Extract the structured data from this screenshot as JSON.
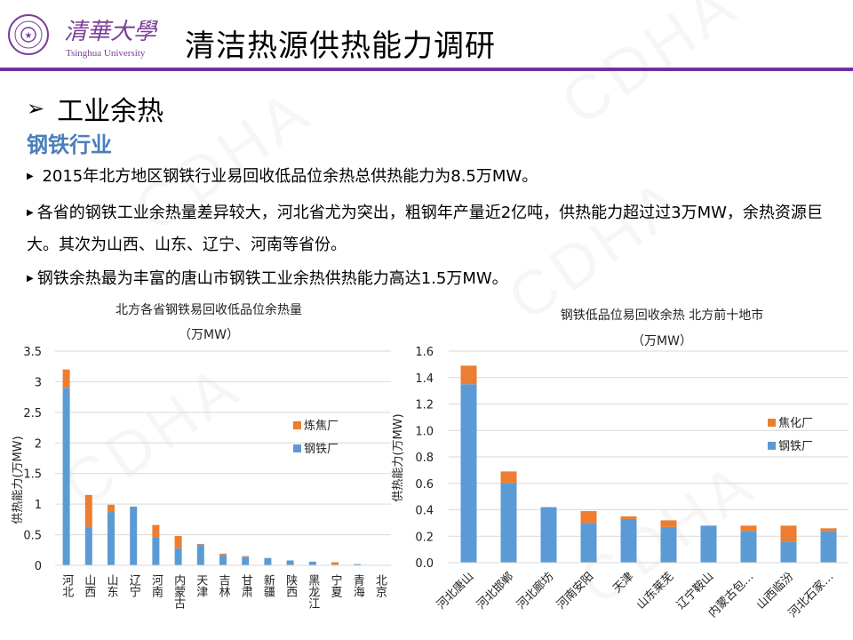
{
  "header": {
    "logo_cn": "清華大學",
    "logo_en": "Tsinghua University",
    "title": "清洁热源供热能力调研",
    "accent_color": "#7030a0"
  },
  "watermark": "CDHA",
  "section": {
    "heading": "工业余热",
    "heading_icon": "arrow-right-icon",
    "subheading": "钢铁行业",
    "subheading_color": "#4a7ebb"
  },
  "bullets": [
    "2015年北方地区钢铁行业易回收低品位余热总供热能力为8.5万MW。",
    "各省的钢铁工业余热量差异较大，河北省尤为突出，粗钢年产量近2亿吨，供热能力超过过3万MW，余热资源巨大。其次为山西、山东、辽宁、河南等省份。",
    "钢铁余热最为丰富的唐山市钢铁工业余热供热能力高达1.5万MW。"
  ],
  "chart_data": [
    {
      "type": "bar",
      "stacked": true,
      "title": "北方各省钢铁易回收低品位余热量",
      "subtitle": "（万MW）",
      "ylabel": "供热能力(万MW)",
      "xlabel": "",
      "ylim": [
        0,
        3.5
      ],
      "yticks": [
        "0",
        "0.5",
        "1",
        "1.5",
        "2",
        "2.5",
        "3",
        "3.5"
      ],
      "grid": true,
      "legend_position": "right",
      "categories": [
        "河北",
        "山西",
        "山东",
        "辽宁",
        "河南",
        "内蒙古",
        "天津",
        "吉林",
        "甘肃",
        "新疆",
        "陕西",
        "黑龙江",
        "宁夏",
        "青海",
        "北京"
      ],
      "series": [
        {
          "name": "钢铁厂",
          "color": "#5b9bd5",
          "values": [
            2.9,
            0.63,
            0.87,
            0.96,
            0.46,
            0.28,
            0.34,
            0.17,
            0.14,
            0.12,
            0.08,
            0.06,
            0,
            0.02,
            0
          ]
        },
        {
          "name": "炼焦厂",
          "color": "#ed7d31",
          "values": [
            0.3,
            0.52,
            0.12,
            0,
            0.2,
            0.2,
            0.01,
            0.02,
            0.01,
            0,
            0,
            0,
            0.05,
            0,
            0
          ]
        }
      ]
    },
    {
      "type": "bar",
      "stacked": true,
      "title": "钢铁低品位易回收余热 北方前十地市",
      "subtitle": "（万MW）",
      "ylabel": "供热能力(万MW)",
      "xlabel": "",
      "ylim": [
        0,
        1.6
      ],
      "yticks": [
        "0.0",
        "0.2",
        "0.4",
        "0.6",
        "0.8",
        "1.0",
        "1.2",
        "1.4",
        "1.6"
      ],
      "grid": true,
      "legend_position": "right",
      "categories": [
        "河北唐山",
        "河北邯郸",
        "河北廊坊",
        "河南安阳",
        "天津",
        "山东莱芜",
        "辽宁鞍山",
        "内蒙古包…",
        "山西临汾",
        "河北石家…"
      ],
      "series": [
        {
          "name": "钢铁厂",
          "color": "#5b9bd5",
          "values": [
            1.35,
            0.6,
            0.42,
            0.3,
            0.33,
            0.27,
            0.28,
            0.24,
            0.16,
            0.24
          ]
        },
        {
          "name": "焦化厂",
          "color": "#ed7d31",
          "values": [
            0.14,
            0.09,
            0,
            0.09,
            0.02,
            0.05,
            0,
            0.04,
            0.12,
            0.02
          ]
        }
      ]
    }
  ]
}
